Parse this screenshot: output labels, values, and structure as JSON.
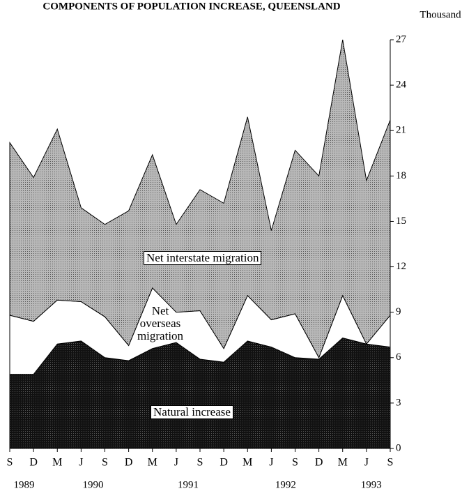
{
  "chart_data": {
    "type": "area",
    "stacked": true,
    "title": "COMPONENTS OF POPULATION INCREASE, QUEENSLAND",
    "y_axis_label": "Thousand",
    "categories": [
      "S",
      "D",
      "M",
      "J",
      "S",
      "D",
      "M",
      "J",
      "S",
      "D",
      "M",
      "J",
      "S",
      "D",
      "M",
      "J",
      "S"
    ],
    "years": [
      "1989",
      "1990",
      "1991",
      "1992",
      "1993"
    ],
    "series": [
      {
        "name": "Natural increase",
        "color": "#151515",
        "values": [
          4.9,
          4.9,
          6.9,
          7.1,
          6.0,
          5.8,
          6.6,
          7.0,
          5.9,
          5.7,
          7.1,
          6.7,
          6.0,
          5.9,
          7.3,
          6.9,
          6.7
        ]
      },
      {
        "name": "Net overseas migration",
        "color": "#ffffff",
        "values": [
          3.9,
          3.5,
          2.9,
          2.6,
          2.7,
          1.0,
          4.0,
          2.0,
          3.2,
          0.9,
          3.0,
          1.8,
          2.9,
          0.1,
          2.8,
          0.0,
          2.1
        ]
      },
      {
        "name": "Net interstate migration",
        "color": "#a0a0a0",
        "values": [
          11.4,
          9.5,
          11.3,
          6.2,
          6.1,
          8.9,
          8.8,
          5.8,
          8.0,
          9.6,
          11.8,
          5.9,
          10.8,
          12.0,
          16.9,
          10.8,
          12.9
        ]
      }
    ],
    "ylim": [
      0,
      27
    ],
    "yticks": [
      0,
      3,
      6,
      9,
      12,
      15,
      18,
      21,
      24,
      27
    ],
    "y_axis_side": "right"
  }
}
